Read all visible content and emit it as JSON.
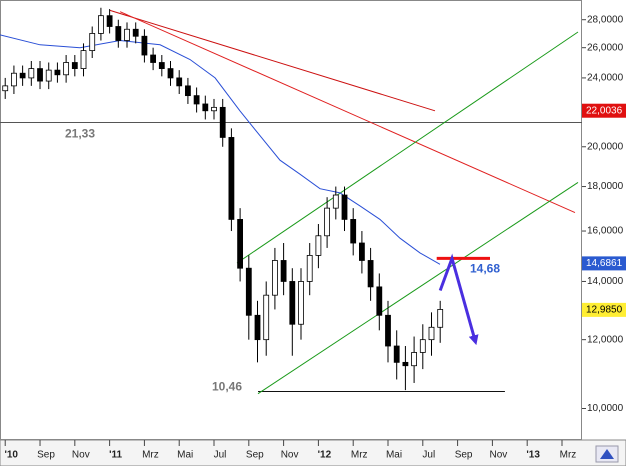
{
  "chart_data": {
    "type": "candlestick",
    "log_scale": true,
    "xlim": [
      5.7,
      39.15
    ],
    "ylim": [
      9.2,
      29.5
    ],
    "xticks": [
      {
        "value": 6,
        "label": "'10"
      },
      {
        "value": 8,
        "label": "Sep"
      },
      {
        "value": 10,
        "label": "Nov"
      },
      {
        "value": 12,
        "label": "'11"
      },
      {
        "value": 14,
        "label": "Mrz"
      },
      {
        "value": 16,
        "label": "Mai"
      },
      {
        "value": 18,
        "label": "Jul"
      },
      {
        "value": 20,
        "label": "Sep"
      },
      {
        "value": 22,
        "label": "Nov"
      },
      {
        "value": 24,
        "label": "'12"
      },
      {
        "value": 26,
        "label": "Mrz"
      },
      {
        "value": 28,
        "label": "Mai"
      },
      {
        "value": 30,
        "label": "Jul"
      },
      {
        "value": 32,
        "label": "Sep"
      },
      {
        "value": 34,
        "label": "Nov"
      },
      {
        "value": 36,
        "label": "'13"
      },
      {
        "value": 38,
        "label": "Mrz"
      }
    ],
    "yticks": [
      {
        "value": 10,
        "label": "10,0000"
      },
      {
        "value": 12,
        "label": "12,0000"
      },
      {
        "value": 14,
        "label": "14,0000"
      },
      {
        "value": 16,
        "label": "16,0000"
      },
      {
        "value": 18,
        "label": "18,0000"
      },
      {
        "value": 20,
        "label": "20,0000"
      },
      {
        "value": 22,
        "label": "22,0000"
      },
      {
        "value": 24,
        "label": "24,0000"
      },
      {
        "value": 26,
        "label": "26,0000"
      },
      {
        "value": 28,
        "label": "28,0000"
      }
    ],
    "x": [
      6.0,
      6.5,
      7.0,
      7.5,
      8.0,
      8.5,
      9.0,
      9.5,
      10.0,
      10.5,
      11.0,
      11.5,
      12.0,
      12.5,
      13.0,
      13.5,
      14.0,
      14.5,
      15.0,
      15.5,
      16.0,
      16.5,
      17.0,
      17.5,
      18.0,
      18.5,
      19.0,
      19.5,
      20.0,
      20.5,
      21.0,
      21.5,
      22.0,
      22.5,
      23.0,
      23.5,
      24.0,
      24.5,
      25.0,
      25.5,
      26.0,
      26.5,
      27.0,
      27.5,
      28.0,
      28.5,
      29.0,
      29.5,
      30.0,
      30.5,
      31.0
    ],
    "open": [
      23.2,
      23.5,
      24.3,
      24.0,
      24.6,
      23.8,
      24.5,
      24.2,
      25.0,
      24.6,
      25.8,
      27.0,
      28.3,
      27.5,
      26.5,
      27.3,
      26.8,
      25.5,
      25.0,
      24.6,
      24.0,
      23.5,
      22.9,
      22.4,
      22.0,
      22.2,
      20.5,
      16.5,
      14.5,
      12.8,
      12.0,
      13.5,
      14.8,
      14.0,
      12.5,
      14.0,
      15.0,
      15.8,
      17.0,
      17.6,
      16.5,
      15.5,
      14.8,
      13.8,
      12.8,
      11.8,
      11.3,
      11.2,
      11.6,
      12.0,
      12.4
    ],
    "high": [
      24.0,
      24.8,
      24.8,
      25.1,
      25.1,
      25.0,
      25.0,
      25.5,
      25.5,
      26.3,
      27.5,
      28.9,
      28.8,
      28.0,
      27.8,
      27.8,
      27.3,
      26.0,
      25.5,
      25.1,
      24.5,
      24.0,
      23.4,
      22.9,
      22.7,
      22.7,
      21.0,
      17.0,
      15.0,
      13.3,
      14.0,
      15.3,
      15.5,
      14.5,
      14.5,
      15.5,
      16.3,
      17.5,
      18.0,
      18.0,
      17.0,
      16.0,
      15.3,
      14.3,
      13.3,
      12.3,
      11.8,
      12.1,
      12.5,
      12.9,
      13.3
    ],
    "low": [
      22.7,
      23.0,
      23.5,
      23.5,
      23.3,
      23.3,
      23.7,
      23.7,
      24.1,
      24.1,
      25.3,
      26.5,
      27.0,
      26.0,
      26.0,
      26.3,
      25.0,
      24.5,
      24.1,
      23.5,
      23.0,
      22.4,
      21.9,
      21.5,
      21.5,
      20.0,
      16.0,
      14.0,
      12.0,
      11.3,
      11.5,
      13.0,
      13.5,
      11.5,
      12.0,
      13.5,
      14.5,
      15.3,
      16.5,
      16.0,
      15.0,
      14.3,
      13.3,
      12.3,
      11.3,
      10.8,
      10.5,
      10.7,
      11.1,
      11.5,
      11.9
    ],
    "close": [
      23.5,
      24.3,
      24.0,
      24.6,
      23.8,
      24.5,
      24.2,
      25.0,
      24.6,
      25.8,
      27.0,
      28.3,
      27.5,
      26.5,
      27.3,
      26.8,
      25.5,
      25.0,
      24.6,
      24.0,
      23.5,
      22.9,
      22.4,
      22.0,
      22.2,
      20.5,
      16.5,
      14.5,
      12.8,
      12.0,
      13.5,
      14.8,
      14.0,
      12.5,
      14.0,
      15.0,
      15.8,
      17.0,
      17.6,
      16.5,
      15.5,
      14.8,
      13.8,
      12.8,
      11.8,
      11.3,
      11.2,
      11.6,
      12.0,
      12.4,
      13.0
    ],
    "moving_average": {
      "color": "#2a4fd6",
      "x": [
        5.7,
        8,
        10.3,
        12.6,
        14.9,
        16.62,
        18.06,
        19.49,
        20.64,
        21.79,
        22.94,
        24.09,
        25.24,
        26.39,
        27.54,
        28.69,
        29.84,
        30.99
      ],
      "values": [
        26.9,
        26.2,
        26.0,
        26.5,
        26.2,
        25.2,
        24.0,
        22.0,
        20.6,
        19.3,
        18.6,
        17.9,
        17.7,
        17.1,
        16.5,
        15.7,
        15.1,
        14.65
      ]
    },
    "trendlines": [
      {
        "color": "#cc1111",
        "x": [
          12.02,
          30.7
        ],
        "values": [
          28.7,
          22.0
        ]
      },
      {
        "color": "#e02020",
        "x": [
          12.6,
          38.75
        ],
        "values": [
          28.6,
          16.8
        ]
      },
      {
        "color": "#1a9a1a",
        "x": [
          19.32,
          38.92
        ],
        "values": [
          14.7,
          27.1
        ]
      },
      {
        "color": "#1a9a1a",
        "x": [
          20.53,
          38.92
        ],
        "values": [
          10.4,
          18.2
        ]
      },
      {
        "color": "#ee1111",
        "x": [
          30.8,
          33.86
        ],
        "values": [
          14.88,
          14.88
        ]
      }
    ],
    "levels": [
      {
        "value": 21.33,
        "label": "21,33",
        "color": "#555555",
        "x": [
          5.7,
          39.15
        ]
      },
      {
        "value": 10.46,
        "label": "10,46",
        "color": "#111111",
        "x": [
          20.53,
          34.72
        ]
      }
    ],
    "annotation": {
      "value": 14.68,
      "label": "14,68",
      "color": "#3060d0"
    },
    "arrow": {
      "color": "#4a2fe0",
      "x": [
        31.0,
        31.68,
        33.0
      ],
      "values": [
        13.67,
        14.88,
        11.98
      ]
    },
    "price_labels": [
      {
        "value": 22.0036,
        "label": "22,0036",
        "color": "#e01010",
        "text_color": "#ffffff"
      },
      {
        "value": 14.6861,
        "label": "14,6861",
        "color": "#2a5ad0",
        "text_color": "#ffffff"
      },
      {
        "value": 12.985,
        "label": "12,9850",
        "color": "#ffee33",
        "text_color": "#000000"
      }
    ]
  }
}
